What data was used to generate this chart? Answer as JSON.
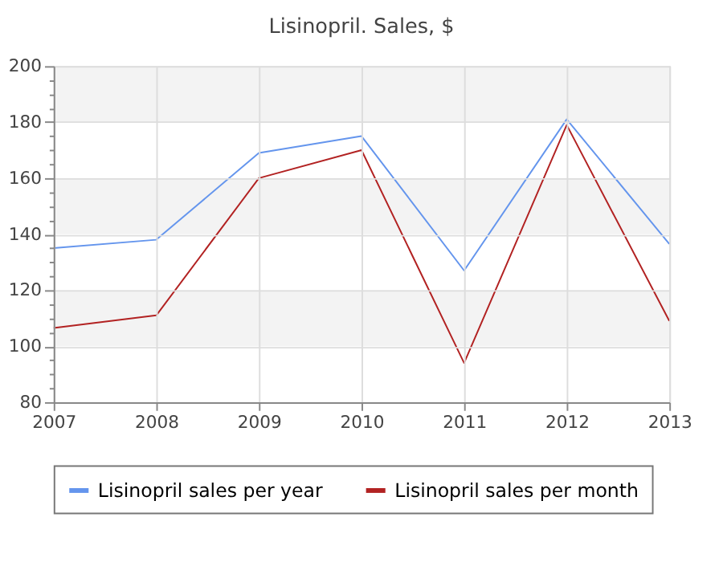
{
  "chart_data": {
    "type": "line",
    "title": "Lisinopril. Sales, $",
    "x": [
      2007,
      2008,
      2009,
      2010,
      2011,
      2012,
      2013
    ],
    "series": [
      {
        "name": "Lisinopril sales per year",
        "color": "#6495ed",
        "values": [
          135,
          138,
          169,
          175,
          127,
          181,
          136.5
        ]
      },
      {
        "name": "Lisinopril sales per month",
        "color": "#b22222",
        "values": [
          106.5,
          111,
          160,
          170,
          94,
          179,
          109
        ]
      }
    ],
    "xlim": [
      2007,
      2013
    ],
    "xticks": [
      2007,
      2008,
      2009,
      2010,
      2011,
      2012,
      2013
    ],
    "ylim": [
      80,
      200
    ],
    "yticks": [
      80,
      {
        "value": 85,
        "label": null
      },
      {
        "value": 90,
        "label": null
      },
      {
        "value": 95,
        "label": null
      },
      100,
      {
        "value": 105,
        "label": null
      },
      {
        "value": 110,
        "label": null
      },
      {
        "value": 115,
        "label": null
      },
      120,
      {
        "value": 125,
        "label": null
      },
      {
        "value": 130,
        "label": null
      },
      {
        "value": 135,
        "label": null
      },
      140,
      {
        "value": 145,
        "label": null
      },
      {
        "value": 150,
        "label": null
      },
      {
        "value": 155,
        "label": null
      },
      160,
      {
        "value": 165,
        "label": null
      },
      {
        "value": 170,
        "label": null
      },
      {
        "value": 175,
        "label": null
      },
      180,
      {
        "value": 185,
        "label": null
      },
      {
        "value": 190,
        "label": null
      },
      {
        "value": 195,
        "label": null
      },
      200
    ],
    "bands": [
      {
        "axis": "y",
        "from": 180,
        "to": 200,
        "color": "#f3f3f3"
      },
      {
        "axis": "y",
        "from": 140,
        "to": 160,
        "color": "#f3f3f3"
      },
      {
        "axis": "y",
        "from": 100,
        "to": 120,
        "color": "#f3f3f3"
      }
    ],
    "grid": true,
    "legend": "bottom",
    "line_style": "solid",
    "marker": "none"
  }
}
